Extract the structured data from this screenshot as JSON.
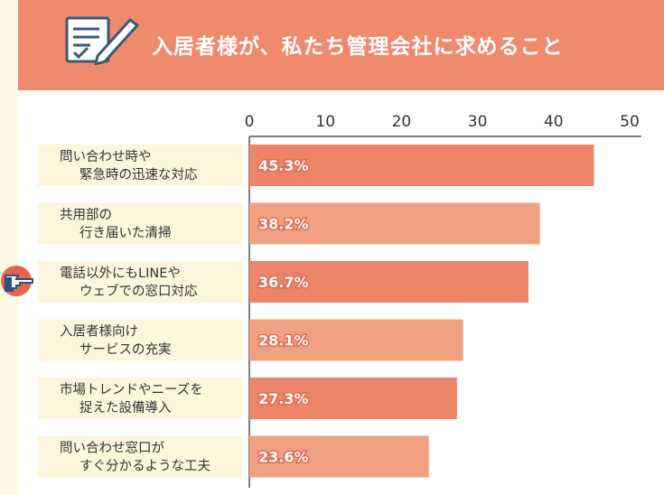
{
  "header": {
    "title": "入居者様が、私たち管理会社に求めること"
  },
  "colors": {
    "header_bg": "#f08a6c",
    "bar_dark": "#ec8567",
    "bar_light": "#f1a182",
    "label_bg": "#fdf5dc"
  },
  "chart_data": {
    "type": "bar",
    "orientation": "horizontal",
    "xlim": [
      0,
      50
    ],
    "ticks": [
      0,
      10,
      20,
      30,
      40,
      50
    ],
    "categories": [
      [
        "問い合わせ時や",
        "緊急時の迅速な対応"
      ],
      [
        "共用部の",
        "行き届いた清掃"
      ],
      [
        "電話以外にもLINEや",
        "ウェブでの窓口対応"
      ],
      [
        "入居者様向け",
        "サービスの充実"
      ],
      [
        "市場トレンドやニーズを",
        "捉えた設備導入"
      ],
      [
        "問い合わせ窓口が",
        "すぐ分かるような工夫"
      ]
    ],
    "values": [
      45.3,
      38.2,
      36.7,
      28.1,
      27.3,
      23.6
    ],
    "value_labels": [
      "45.3%",
      "38.2%",
      "36.7%",
      "28.1%",
      "27.3%",
      "23.6%"
    ],
    "highlighted_category_index": 2,
    "grid": false
  }
}
